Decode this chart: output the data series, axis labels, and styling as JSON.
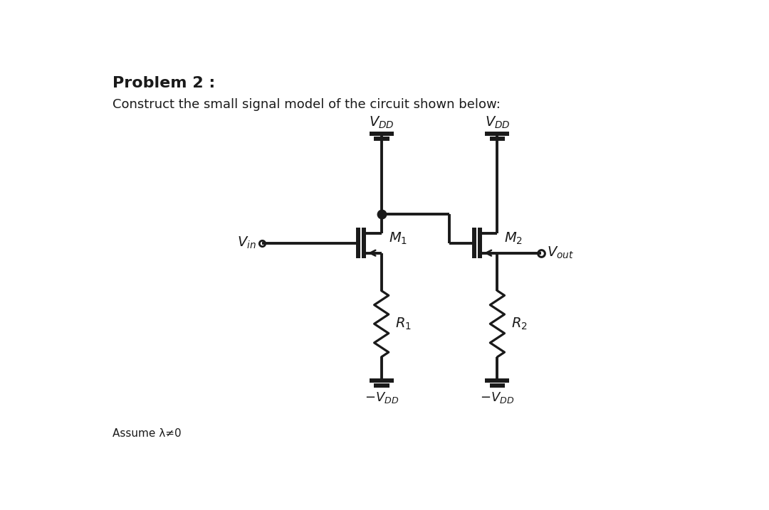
{
  "title": "Problem 2 :",
  "subtitle": "Construct the small signal model of the circuit shown below:",
  "assume_text": "Assume λ≠0",
  "bg_color": "#ffffff",
  "line_color": "#1a1a1a",
  "lw": 2.8,
  "vdd_label": "$V_{DD}$",
  "neg_vdd_label": "$-V_{DD}$",
  "vout_label": "$V_{out}$",
  "vin_label": "$V_{in}$",
  "m1_label": "$M_1$",
  "m2_label": "$M_2$",
  "r1_label": "$R_1$",
  "r2_label": "$R_2$"
}
